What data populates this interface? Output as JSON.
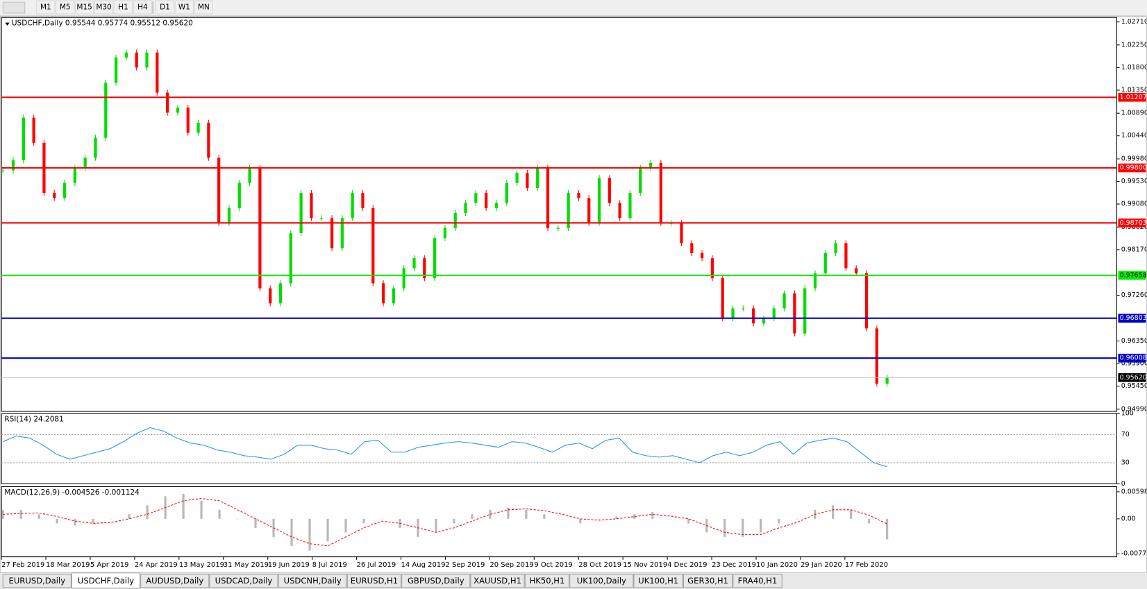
{
  "toolbar": {
    "timeframes": [
      "M1",
      "M5",
      "M15",
      "M30",
      "H1",
      "H4",
      "D1",
      "W1",
      "MN"
    ]
  },
  "chart": {
    "header": "USDCHF,Daily  0.95544 0.95774 0.95512 0.95620",
    "ylim": [
      0.94946,
      1.02797
    ],
    "ticks": [
      {
        "value": 1.0271,
        "label": "1.02710"
      },
      {
        "value": 1.0225,
        "label": "1.02250"
      },
      {
        "value": 1.018,
        "label": "1.01800"
      },
      {
        "value": 1.0135,
        "label": "1.01350"
      },
      {
        "value": 1.0089,
        "label": "1.00890"
      },
      {
        "value": 1.0044,
        "label": "1.00440"
      },
      {
        "value": 0.9998,
        "label": "0.99980"
      },
      {
        "value": 0.9953,
        "label": "0.99530"
      },
      {
        "value": 0.9908,
        "label": "0.99080"
      },
      {
        "value": 0.9862,
        "label": "0.98620"
      },
      {
        "value": 0.9817,
        "label": "0.98170"
      },
      {
        "value": 0.9726,
        "label": "0.97260"
      },
      {
        "value": 0.9635,
        "label": "0.96350"
      },
      {
        "value": 0.959,
        "label": "0.95900"
      },
      {
        "value": 0.9545,
        "label": "0.95450"
      },
      {
        "value": 0.9499,
        "label": "0.94990"
      }
    ],
    "levels": [
      {
        "value": 1.01207,
        "label": "1.01207",
        "color": "#ff0000",
        "text_color": "#ffffff"
      },
      {
        "value": 0.998,
        "label": "0.99800",
        "color": "#ff0000",
        "text_color": "#ffffff"
      },
      {
        "value": 0.98703,
        "label": "0.98703",
        "color": "#ff0000",
        "text_color": "#ffffff"
      },
      {
        "value": 0.97658,
        "label": "0.97658",
        "color": "#00ee00",
        "text_color": "#000000"
      },
      {
        "value": 0.96803,
        "label": "0.96803",
        "color": "#0000cc",
        "text_color": "#ffffff"
      },
      {
        "value": 0.96008,
        "label": "0.96008",
        "color": "#0000cc",
        "text_color": "#ffffff"
      }
    ],
    "current_price": {
      "value": 0.9562,
      "label": "0.95620"
    },
    "closes": [
      0.9975,
      0.9995,
      1.008,
      1.003,
      0.993,
      0.992,
      0.995,
      0.998,
      1.0,
      1.004,
      1.015,
      1.02,
      1.021,
      1.018,
      1.021,
      1.013,
      1.009,
      1.01,
      1.005,
      1.007,
      1.0,
      0.987,
      0.99,
      0.995,
      0.998,
      0.974,
      0.971,
      0.975,
      0.985,
      0.993,
      0.988,
      0.988,
      0.982,
      0.988,
      0.993,
      0.99,
      0.975,
      0.971,
      0.974,
      0.978,
      0.98,
      0.976,
      0.984,
      0.986,
      0.989,
      0.991,
      0.993,
      0.99,
      0.991,
      0.995,
      0.997,
      0.994,
      0.998,
      0.986,
      0.986,
      0.993,
      0.992,
      0.987,
      0.996,
      0.991,
      0.988,
      0.993,
      0.998,
      0.999,
      0.987,
      0.987,
      0.983,
      0.981,
      0.98,
      0.976,
      0.968,
      0.97,
      0.97,
      0.967,
      0.968,
      0.97,
      0.973,
      0.965,
      0.974,
      0.977,
      0.981,
      0.983,
      0.978,
      0.977,
      0.966,
      0.955,
      0.9562
    ]
  },
  "rsi": {
    "label": "RSI(14) 24.2081",
    "ylim": [
      0,
      100
    ],
    "ticks": [
      100,
      70,
      30,
      0
    ],
    "values": [
      60,
      68,
      65,
      55,
      42,
      35,
      40,
      45,
      50,
      60,
      72,
      80,
      75,
      65,
      58,
      55,
      48,
      45,
      40,
      38,
      35,
      42,
      55,
      55,
      50,
      48,
      42,
      60,
      62,
      45,
      45,
      52,
      55,
      58,
      60,
      58,
      55,
      52,
      60,
      58,
      52,
      45,
      55,
      58,
      50,
      62,
      65,
      45,
      40,
      38,
      40,
      35,
      30,
      40,
      45,
      40,
      45,
      55,
      60,
      42,
      58,
      62,
      65,
      60,
      45,
      30,
      24.2081
    ]
  },
  "macd": {
    "label": "MACD(12,26,9) -0.004526 -0.001124",
    "ylim": [
      -0.00841,
      0.00712
    ],
    "ticks": [
      0.005986,
      {
        "value": 0,
        "label": "0.00"
      },
      -0.007737
    ],
    "main": [
      0.002,
      0.002,
      0.001,
      -0.001,
      -0.0015,
      -0.001,
      0.0,
      0.001,
      0.003,
      0.005,
      0.0055,
      0.004,
      0.002,
      0.0,
      -0.002,
      -0.004,
      -0.006,
      -0.007,
      -0.005,
      -0.003,
      -0.001,
      0.0,
      -0.002,
      -0.004,
      -0.003,
      -0.001,
      0.001,
      0.002,
      0.0025,
      0.002,
      0.001,
      0.0,
      -0.001,
      0.0,
      0.0005,
      0.001,
      0.0015,
      0.0,
      -0.001,
      -0.003,
      -0.004,
      -0.004,
      -0.003,
      -0.001,
      0.0,
      0.002,
      0.003,
      0.002,
      -0.001,
      -0.004526
    ],
    "signal": [
      0.001,
      0.0012,
      0.0013,
      0.0005,
      -0.0005,
      -0.001,
      -0.0008,
      0.0,
      0.001,
      0.0025,
      0.004,
      0.0045,
      0.004,
      0.002,
      0.0,
      -0.002,
      -0.004,
      -0.0055,
      -0.006,
      -0.004,
      -0.002,
      -0.0005,
      -0.001,
      -0.002,
      -0.003,
      -0.002,
      -0.0005,
      0.001,
      0.002,
      0.0022,
      0.0018,
      0.001,
      0.0,
      -0.0003,
      0.0,
      0.0005,
      0.001,
      0.0006,
      0.0,
      -0.0015,
      -0.003,
      -0.0035,
      -0.0035,
      -0.002,
      -0.0008,
      0.001,
      0.002,
      0.002,
      0.0008,
      -0.001124
    ]
  },
  "dates": [
    "27 Feb 2019",
    "18 Mar 2019",
    "5 Apr 2019",
    "24 Apr 2019",
    "13 May 2019",
    "31 May 2019",
    "19 Jun 2019",
    "8 Jul 2019",
    "26 Jul 2019",
    "14 Aug 2019",
    "2 Sep 2019",
    "20 Sep 2019",
    "9 Oct 2019",
    "28 Oct 2019",
    "15 Nov 2019",
    "4 Dec 2019",
    "23 Dec 2019",
    "10 Jan 2020",
    "29 Jan 2020",
    "17 Feb 2020"
  ],
  "tabs": [
    "EURUSD,Daily",
    "USDCHF,Daily",
    "AUDUSD,Daily",
    "USDCAD,Daily",
    "USDCNH,Daily",
    "EURUSD,H1",
    "GBPUSD,Daily",
    "XAUUSD,H1",
    "HK50,H1",
    "UK100,Daily",
    "UK100,H1",
    "GER30,H1",
    "FRA40,H1"
  ]
}
